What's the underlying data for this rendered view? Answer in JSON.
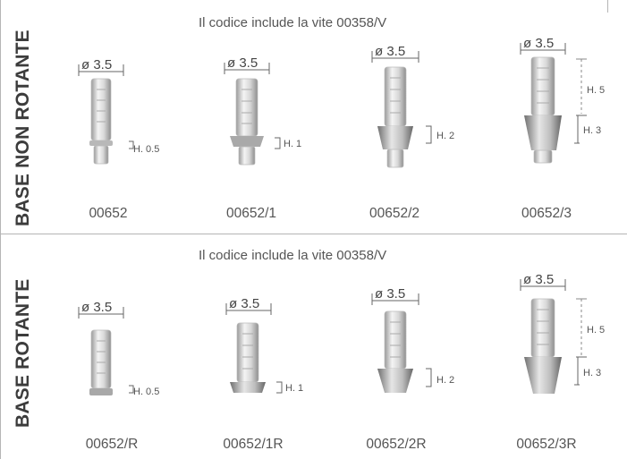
{
  "sections": [
    {
      "label": "BASE NON ROTANTE",
      "note": "Il codice include la vite 00358/V",
      "items": [
        {
          "diameter": "ø 3.5",
          "code": "00652",
          "heights": [
            "H. 0.5"
          ]
        },
        {
          "diameter": "ø 3.5",
          "code": "00652/1",
          "heights": [
            "H. 1"
          ]
        },
        {
          "diameter": "ø 3.5",
          "code": "00652/2",
          "heights": [
            "H. 2"
          ]
        },
        {
          "diameter": "ø 3.5",
          "code": "00652/3",
          "heights": [
            "H. 5",
            "H. 3"
          ]
        }
      ]
    },
    {
      "label": "BASE ROTANTE",
      "note": "Il codice include la vite 00358/V",
      "items": [
        {
          "diameter": "ø 3.5",
          "code": "00652/R",
          "heights": [
            "H. 0.5"
          ]
        },
        {
          "diameter": "ø 3.5",
          "code": "00652/1R",
          "heights": [
            "H. 1"
          ]
        },
        {
          "diameter": "ø 3.5",
          "code": "00652/2R",
          "heights": [
            "H. 2"
          ]
        },
        {
          "diameter": "ø 3.5",
          "code": "00652/3R",
          "heights": [
            "H. 5",
            "H. 3"
          ]
        }
      ]
    }
  ]
}
